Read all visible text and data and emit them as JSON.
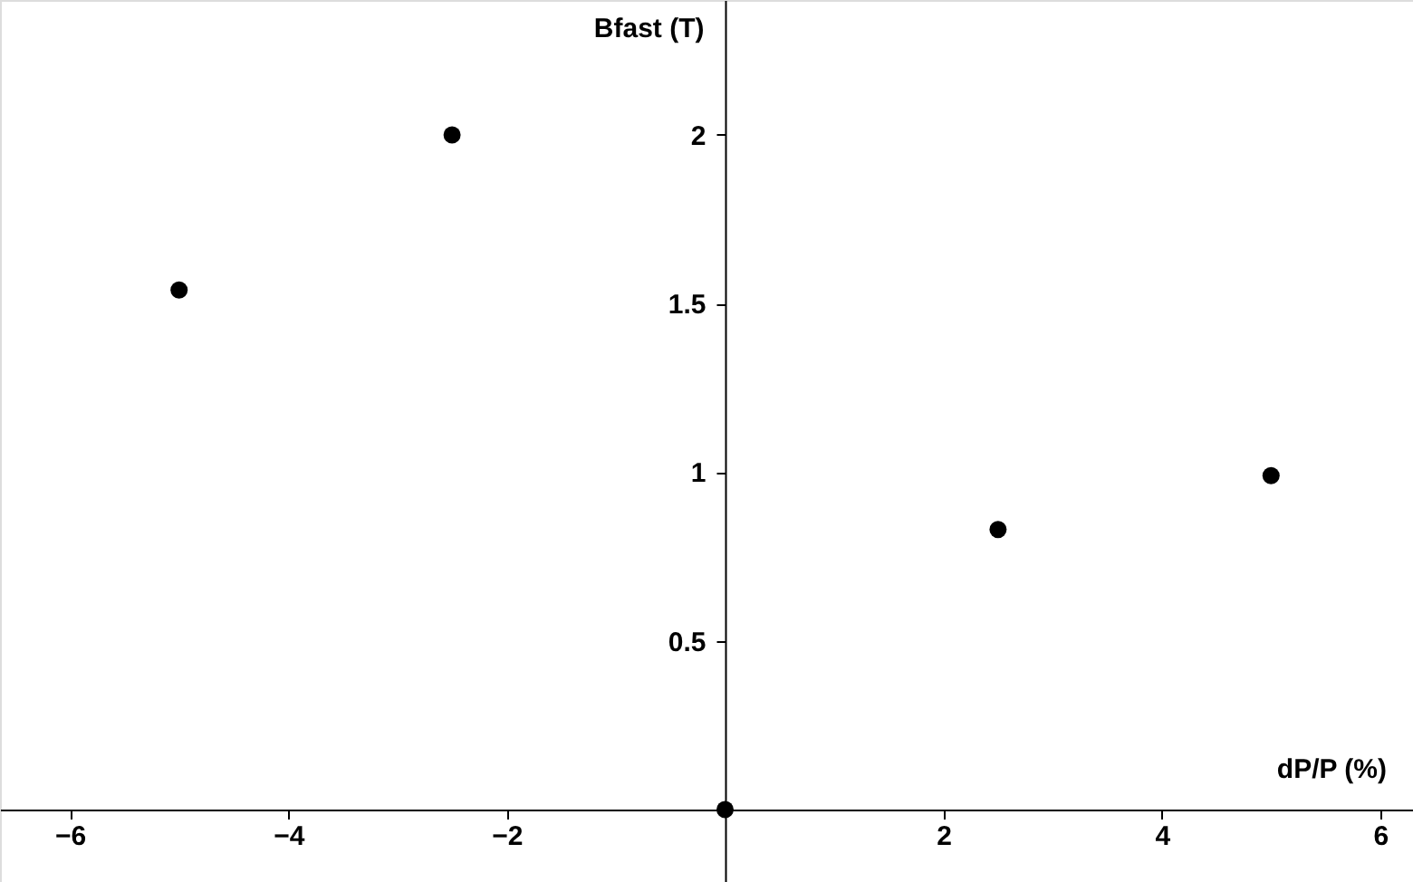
{
  "chart_data": {
    "type": "scatter",
    "xlabel": "dP/P (%)",
    "ylabel": "Bfast (T)",
    "x": [
      -5,
      -2.5,
      0,
      2.5,
      5
    ],
    "series": [
      {
        "color": "#000000",
        "values": [
          1.54,
          2.0,
          0,
          0.83,
          0.99
        ]
      }
    ],
    "marker": "circle",
    "grid": false,
    "xlim": [
      -6.64,
      6.3
    ],
    "xticks": [
      -6,
      -4,
      -2,
      2,
      4,
      6
    ],
    "ylim": [
      -0.215,
      2.4
    ],
    "yticks": [
      0.5,
      1,
      1.5,
      2
    ]
  }
}
